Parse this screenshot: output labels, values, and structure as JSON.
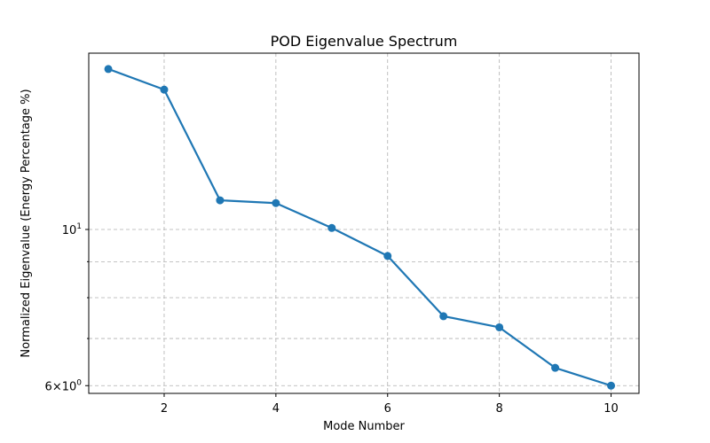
{
  "chart_data": {
    "type": "line",
    "title": "POD Eigenvalue Spectrum",
    "xlabel": "Mode Number",
    "ylabel": "Normalized Eigenvalue (Energy Percentage %)",
    "yscale": "log",
    "xlim": [
      0.65,
      10.5
    ],
    "ylim": [
      5.85,
      17.8
    ],
    "grid": true,
    "series_color": "#1f77b4",
    "x_ticks": [
      {
        "value": 2,
        "label": "2"
      },
      {
        "value": 4,
        "label": "4"
      },
      {
        "value": 6,
        "label": "6"
      },
      {
        "value": 8,
        "label": "8"
      },
      {
        "value": 10,
        "label": "10"
      }
    ],
    "y_major_ticks": [
      {
        "value": 10,
        "base": "10",
        "exp": "1"
      },
      {
        "value": 6,
        "mantissa": "6",
        "base": "10",
        "exp": "0"
      }
    ],
    "y_minor_ticks": [
      7,
      8,
      9
    ],
    "x": [
      1,
      2,
      3,
      4,
      5,
      6,
      7,
      8,
      9,
      10
    ],
    "y": [
      16.9,
      15.8,
      11.0,
      10.9,
      10.05,
      9.17,
      7.53,
      7.26,
      6.36,
      6.0
    ]
  }
}
